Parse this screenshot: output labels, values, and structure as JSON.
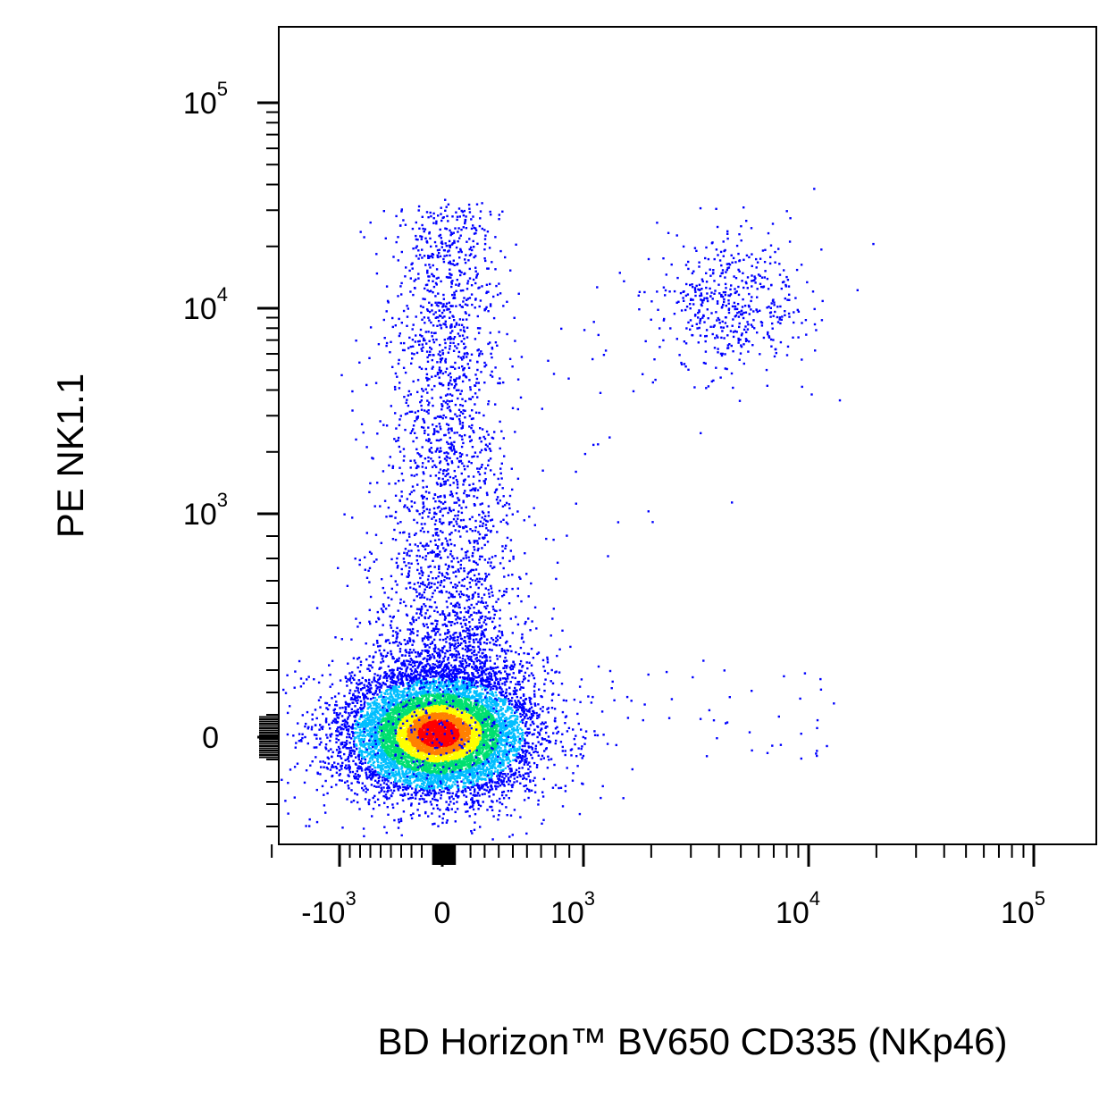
{
  "chart_data": {
    "type": "scatter",
    "subtype": "flow-cytometry-density-dot-plot",
    "xlabel": "BD Horizon™ BV650 CD335 (NKp46)",
    "ylabel": "PE NK1.1",
    "x_scale": "biexponential",
    "y_scale": "biexponential",
    "xlim": [
      -2500,
      200000
    ],
    "ylim": [
      -400,
      200000
    ],
    "x_ticks": [
      {
        "value": -1000,
        "base": "-10",
        "exp": "3"
      },
      {
        "value": 0,
        "base": "0",
        "exp": ""
      },
      {
        "value": 1000,
        "base": "10",
        "exp": "3"
      },
      {
        "value": 10000,
        "base": "10",
        "exp": "4"
      },
      {
        "value": 100000,
        "base": "10",
        "exp": "5"
      }
    ],
    "y_ticks": [
      {
        "value": 0,
        "base": "0",
        "exp": ""
      },
      {
        "value": 1000,
        "base": "10",
        "exp": "3"
      },
      {
        "value": 10000,
        "base": "10",
        "exp": "4"
      },
      {
        "value": 100000,
        "base": "10",
        "exp": "5"
      }
    ],
    "colormap": [
      "#0000ff",
      "#00bfff",
      "#00e070",
      "#ffff00",
      "#ff8000",
      "#ff0000"
    ],
    "grid": false,
    "legend": "none",
    "populations": [
      {
        "description": "main negative cluster",
        "x_center": 0,
        "y_center": 0,
        "spread": "dense",
        "approx_events": 9000
      },
      {
        "description": "NK1.1+ NKp46- vertical streak",
        "x_range": [
          -300,
          600
        ],
        "y_range": [
          300,
          35000
        ],
        "approx_events": 2600
      },
      {
        "description": "NK1.1+ NKp46+ cluster",
        "x_center": 4500,
        "y_center": 11000,
        "approx_events": 450
      },
      {
        "description": "sparse NKp46+ NK1.1- events",
        "x_range": [
          1500,
          12000
        ],
        "y_range": [
          -100,
          200
        ],
        "approx_events": 40
      }
    ]
  }
}
